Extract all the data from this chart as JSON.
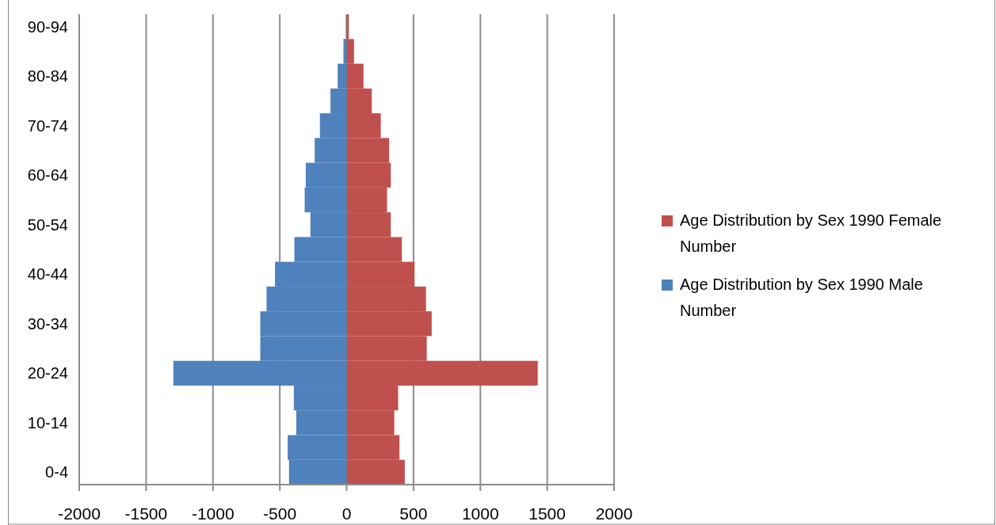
{
  "chart_data": {
    "type": "bar",
    "orientation": "horizontal",
    "stacked": true,
    "categories": [
      "90-94",
      null,
      "80-84",
      null,
      "70-74",
      null,
      "60-64",
      null,
      "50-54",
      null,
      "40-44",
      null,
      "30-34",
      null,
      "20-24",
      null,
      "10-14",
      null,
      "0-4"
    ],
    "series": [
      {
        "name": "Age Distribution by Sex 1990 Female Number",
        "color": "#c0504d",
        "values": [
          16,
          55,
          126,
          188,
          255,
          318,
          330,
          302,
          330,
          413,
          508,
          593,
          636,
          599,
          1429,
          385,
          356,
          395,
          435
        ]
      },
      {
        "name": "Age Distribution by Sex 1990 Male Number",
        "color": "#4f81bd",
        "values": [
          0,
          -24,
          -67,
          -121,
          -200,
          -239,
          -306,
          -314,
          -271,
          -391,
          -536,
          -599,
          -646,
          -646,
          -1296,
          -395,
          -377,
          -441,
          -431
        ]
      }
    ],
    "xlim": [
      -2000,
      2000
    ],
    "xticks": [
      -2000,
      -1500,
      -1000,
      -500,
      0,
      500,
      1000,
      1500,
      2000
    ],
    "grid": "x",
    "legend": "right"
  }
}
